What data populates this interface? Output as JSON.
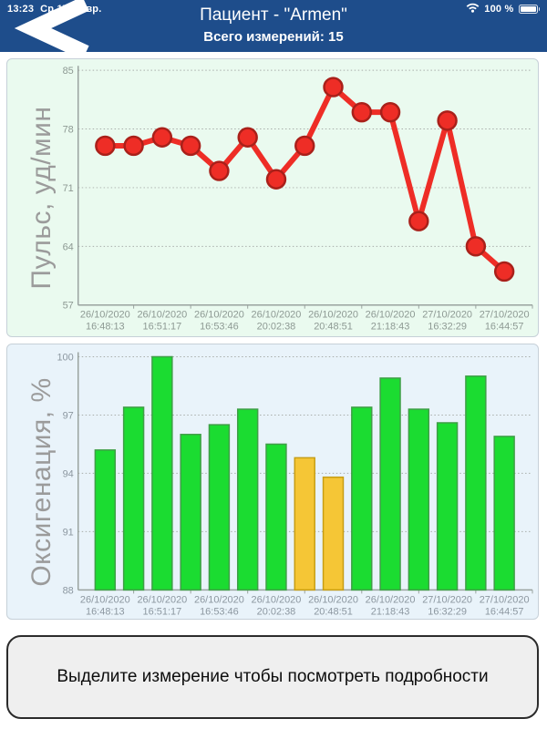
{
  "status_bar": {
    "time": "13:23",
    "date": "Ср 17 февр.",
    "battery_percent": "100 %"
  },
  "header": {
    "title": "Пациент - \"Armen\"",
    "subtitle": "Всего измерений: 15",
    "bg_color": "#1e4d8b"
  },
  "hint": {
    "text": "Выделите измерение чтобы посмотреть подробности"
  },
  "chart_data": [
    {
      "type": "line",
      "title": "Пульс",
      "ylabel": "Пульс, уд/мин",
      "ylim": [
        57,
        85
      ],
      "y_ticks": [
        85,
        78,
        71,
        64,
        57
      ],
      "grid": true,
      "x_labels": [
        {
          "date": "26/10/2020",
          "time": "16:48:13"
        },
        {
          "date": "26/10/2020",
          "time": "16:51:17"
        },
        {
          "date": "26/10/2020",
          "time": "16:53:46"
        },
        {
          "date": "26/10/2020",
          "time": "20:02:38"
        },
        {
          "date": "26/10/2020",
          "time": "20:48:51"
        },
        {
          "date": "26/10/2020",
          "time": "21:18:43"
        },
        {
          "date": "27/10/2020",
          "time": "16:32:29"
        },
        {
          "date": "27/10/2020",
          "time": "16:44:57"
        }
      ],
      "values": [
        76,
        76,
        77,
        76,
        73,
        77,
        72,
        76,
        83,
        80,
        80,
        67,
        79,
        64,
        61
      ],
      "line_color": "#ee2d26",
      "marker_fill": "#ee2d26",
      "marker_stroke": "#a9201a",
      "panel_bg": "#eafaef",
      "tick_color": "#8d9993"
    },
    {
      "type": "bar",
      "title": "Оксигенация",
      "ylabel": "Оксигенация, %",
      "ylim": [
        88,
        100
      ],
      "y_ticks": [
        100,
        97,
        94,
        91,
        88
      ],
      "grid": true,
      "x_labels": [
        {
          "date": "26/10/2020",
          "time": "16:48:13"
        },
        {
          "date": "26/10/2020",
          "time": "16:51:17"
        },
        {
          "date": "26/10/2020",
          "time": "16:53:46"
        },
        {
          "date": "26/10/2020",
          "time": "20:02:38"
        },
        {
          "date": "26/10/2020",
          "time": "20:48:51"
        },
        {
          "date": "26/10/2020",
          "time": "21:18:43"
        },
        {
          "date": "27/10/2020",
          "time": "16:32:29"
        },
        {
          "date": "27/10/2020",
          "time": "16:44:57"
        }
      ],
      "values": [
        95.2,
        97.4,
        100,
        96,
        96.5,
        97.3,
        95.5,
        94.8,
        93.8,
        97.4,
        98.9,
        97.3,
        96.6,
        99,
        95.9
      ],
      "bar_colors": [
        "green",
        "green",
        "green",
        "green",
        "green",
        "green",
        "green",
        "yellow",
        "yellow",
        "green",
        "green",
        "green",
        "green",
        "green",
        "green"
      ],
      "palette": {
        "green": {
          "fill": "#1bdc31",
          "stroke": "#3f9e47"
        },
        "yellow": {
          "fill": "#f5c636",
          "stroke": "#c79d13"
        }
      },
      "panel_bg": "#e9f3fa",
      "tick_color": "#8c97a0"
    }
  ]
}
